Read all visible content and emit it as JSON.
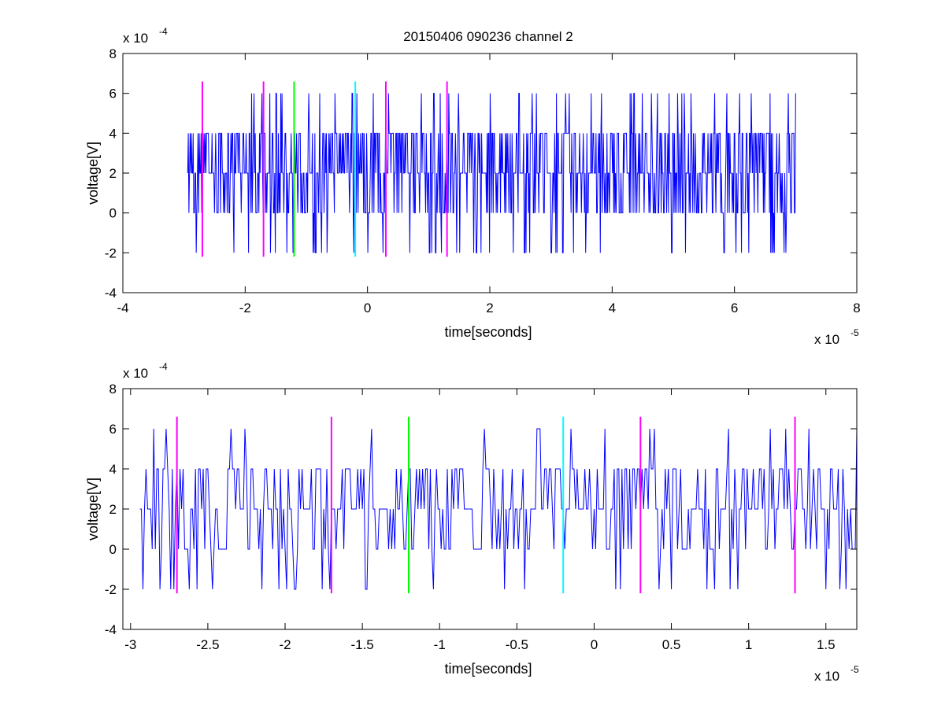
{
  "title": "20150406 090236 channel 2",
  "colors": {
    "signal": "#0000ff",
    "magenta": "#ff00ff",
    "green": "#00ff00",
    "cyan": "#00ffff",
    "axes": "#000000"
  },
  "chart_data": [
    {
      "type": "line",
      "title": "20150406 090236 channel 2",
      "xlabel": "time[seconds]",
      "ylabel": "voltage[V]",
      "x_exponent_label": "x 10",
      "x_exponent": "-5",
      "y_exponent_label": "x 10",
      "y_exponent": "-4",
      "xlim": [
        -4,
        8
      ],
      "ylim": [
        -4,
        8
      ],
      "xticks": [
        -4,
        -2,
        0,
        2,
        4,
        6,
        8
      ],
      "xtick_labels": [
        "-4",
        "-2",
        "0",
        "2",
        "4",
        "6",
        "8"
      ],
      "yticks": [
        -4,
        -2,
        0,
        2,
        4,
        6,
        8
      ],
      "ytick_labels": [
        "-4",
        "-2",
        "0",
        "2",
        "4",
        "6",
        "8"
      ],
      "grid": false,
      "series": [
        {
          "color": "#0000ff",
          "x_start": -2.94,
          "x_end": 7.0,
          "points": 1000,
          "seed": 17,
          "levels": [
            -2,
            0,
            2,
            4,
            6
          ]
        }
      ],
      "markers": [
        {
          "x": -2.7,
          "color": "#ff00ff",
          "y_range": [
            -2.2,
            6.6
          ]
        },
        {
          "x": -1.7,
          "color": "#ff00ff",
          "y_range": [
            -2.2,
            6.6
          ]
        },
        {
          "x": -1.2,
          "color": "#00ff00",
          "y_range": [
            -2.2,
            6.6
          ]
        },
        {
          "x": -0.2,
          "color": "#00ffff",
          "y_range": [
            -2.2,
            6.6
          ]
        },
        {
          "x": 0.3,
          "color": "#ff00ff",
          "y_range": [
            -2.2,
            6.6
          ]
        },
        {
          "x": 1.3,
          "color": "#ff00ff",
          "y_range": [
            -2.2,
            6.6
          ]
        }
      ]
    },
    {
      "type": "line",
      "title": "",
      "xlabel": "time[seconds]",
      "ylabel": "voltage[V]",
      "x_exponent_label": "x 10",
      "x_exponent": "-5",
      "y_exponent_label": "x 10",
      "y_exponent": "-4",
      "xlim": [
        -3.05,
        1.7
      ],
      "ylim": [
        -4,
        8
      ],
      "xticks": [
        -3,
        -2.5,
        -2,
        -1.5,
        -1,
        -0.5,
        0,
        0.5,
        1,
        1.5
      ],
      "xtick_labels": [
        "-3",
        "-2.5",
        "-2",
        "-1.5",
        "-1",
        "-0.5",
        "0",
        "0.5",
        "1",
        "1.5"
      ],
      "yticks": [
        -4,
        -2,
        0,
        2,
        4,
        6,
        8
      ],
      "ytick_labels": [
        "-4",
        "-2",
        "0",
        "2",
        "4",
        "6",
        "8"
      ],
      "grid": false,
      "series": [
        {
          "color": "#0000ff",
          "x_start": -2.94,
          "x_end": 1.7,
          "points": 465,
          "seed": 41,
          "levels": [
            -2,
            0,
            2,
            4,
            6
          ]
        }
      ],
      "markers": [
        {
          "x": -2.7,
          "color": "#ff00ff",
          "y_range": [
            -2.2,
            6.6
          ]
        },
        {
          "x": -1.7,
          "color": "#ff00ff",
          "y_range": [
            -2.2,
            6.6
          ]
        },
        {
          "x": -1.2,
          "color": "#00ff00",
          "y_range": [
            -2.2,
            6.6
          ]
        },
        {
          "x": -0.2,
          "color": "#00ffff",
          "y_range": [
            -2.2,
            6.6
          ]
        },
        {
          "x": 0.3,
          "color": "#ff00ff",
          "y_range": [
            -2.2,
            6.6
          ]
        },
        {
          "x": 1.3,
          "color": "#ff00ff",
          "y_range": [
            -2.2,
            6.6
          ]
        }
      ]
    }
  ]
}
